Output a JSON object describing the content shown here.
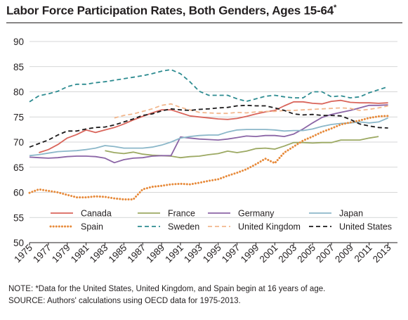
{
  "title": "Labor Force Participation Rates, Both Genders, Ages 15-64",
  "title_mark": "*",
  "notes": {
    "note": "NOTE: *Data for the United States, United Kingdom, and Spain begin at 16 years of age.",
    "source": "SOURCE: Authors' calculations using OECD data for 1975-2013."
  },
  "chart_data": {
    "type": "line",
    "title": "Labor Force Participation Rates, Both Genders, Ages 15-64*",
    "xlabel": "",
    "ylabel": "",
    "xlim": [
      1975,
      2014
    ],
    "ylim": [
      50,
      90
    ],
    "x_ticks": [
      1975,
      1977,
      1979,
      1981,
      1983,
      1985,
      1987,
      1989,
      1991,
      1993,
      1995,
      1997,
      1999,
      2001,
      2003,
      2005,
      2007,
      2009,
      2011,
      2013
    ],
    "y_ticks": [
      50,
      55,
      60,
      65,
      70,
      75,
      80,
      85,
      90
    ],
    "grid": "horizontal",
    "legend_position": "bottom-inside",
    "series": [
      {
        "name": "Canada",
        "color": "#d9655b",
        "dash": "solid",
        "x_start": 1976,
        "values": [
          67.9,
          68.5,
          69.5,
          70.8,
          71.5,
          72.4,
          71.9,
          72.4,
          72.9,
          73.6,
          74.4,
          75.1,
          75.8,
          76.4,
          76.4,
          75.8,
          75.2,
          75.0,
          74.8,
          74.6,
          74.5,
          74.7,
          75.1,
          75.6,
          76.0,
          76.3,
          77.2,
          78.0,
          78.0,
          77.7,
          77.6,
          78.1,
          78.3,
          77.9,
          77.8,
          77.8,
          77.7,
          77.8
        ]
      },
      {
        "name": "France",
        "color": "#9ca963",
        "dash": "solid",
        "x_start": 1983,
        "values": [
          68.3,
          67.9,
          67.7,
          68.0,
          67.6,
          67.4,
          67.3,
          67.2,
          66.9,
          67.1,
          67.2,
          67.5,
          67.7,
          68.2,
          67.9,
          68.2,
          68.7,
          68.8,
          68.6,
          69.2,
          69.9,
          69.9,
          69.8,
          69.9,
          69.9,
          70.4,
          70.4,
          70.4,
          70.8,
          71.1
        ]
      },
      {
        "name": "Germany",
        "color": "#8b65a6",
        "dash": "solid",
        "x_start": 1975,
        "values": [
          67.0,
          66.9,
          66.8,
          66.9,
          67.1,
          67.2,
          67.2,
          67.1,
          66.8,
          65.9,
          66.5,
          66.8,
          66.9,
          67.2,
          67.3,
          67.3,
          71.0,
          70.8,
          70.6,
          70.5,
          70.4,
          70.6,
          70.9,
          71.2,
          71.1,
          71.3,
          71.3,
          71.1,
          71.6,
          72.6,
          73.8,
          74.9,
          75.5,
          75.9,
          76.3,
          76.8,
          77.3,
          77.3,
          77.4
        ]
      },
      {
        "name": "Japan",
        "color": "#8bb7c9",
        "dash": "solid",
        "x_start": 1975,
        "values": [
          67.3,
          67.5,
          67.8,
          68.1,
          68.2,
          68.3,
          68.5,
          68.8,
          69.3,
          69.1,
          68.8,
          68.8,
          68.8,
          69.0,
          69.4,
          70.0,
          70.8,
          71.1,
          71.3,
          71.4,
          71.4,
          72.0,
          72.4,
          72.5,
          72.5,
          72.5,
          72.4,
          72.2,
          72.3,
          72.3,
          72.6,
          73.1,
          73.5,
          73.7,
          73.8,
          74.0,
          73.8,
          74.0,
          74.8
        ]
      },
      {
        "name": "Spain",
        "color": "#e78b3c",
        "dash": "dotted",
        "x_start": 1975,
        "values": [
          59.9,
          60.6,
          60.3,
          60.0,
          59.5,
          59.0,
          59.0,
          59.2,
          59.1,
          58.8,
          58.6,
          58.6,
          60.6,
          61.1,
          61.3,
          61.6,
          61.7,
          61.6,
          61.9,
          62.3,
          62.6,
          63.3,
          63.9,
          64.6,
          65.6,
          66.7,
          65.8,
          67.9,
          69.1,
          70.3,
          71.1,
          72.0,
          72.7,
          73.5,
          73.9,
          74.3,
          74.8,
          75.1,
          75.2
        ]
      },
      {
        "name": "Sweden",
        "color": "#2e8c91",
        "dash": "dashed",
        "x_start": 1975,
        "values": [
          78.0,
          79.2,
          79.6,
          80.1,
          81.0,
          81.5,
          81.5,
          81.8,
          82.0,
          82.3,
          82.6,
          82.9,
          83.2,
          83.6,
          84.1,
          84.4,
          83.6,
          82.0,
          80.1,
          79.3,
          79.3,
          79.3,
          78.6,
          78.1,
          78.6,
          79.1,
          79.3,
          79.0,
          78.8,
          78.8,
          80.0,
          80.0,
          79.0,
          79.2,
          78.8,
          79.0,
          79.8,
          80.4,
          81.0
        ]
      },
      {
        "name": "United Kingdom",
        "color": "#f2b78d",
        "dash": "dashed",
        "x_start": 1984,
        "values": [
          74.8,
          75.3,
          75.6,
          76.1,
          76.6,
          77.3,
          77.6,
          76.9,
          76.4,
          75.9,
          75.8,
          75.7,
          75.7,
          75.9,
          75.8,
          76.0,
          76.1,
          76.1,
          76.3,
          76.3,
          76.4,
          76.5,
          76.6,
          76.7,
          76.8,
          76.7,
          76.3,
          76.5,
          76.8,
          77.2
        ]
      },
      {
        "name": "United States",
        "color": "#1c1a1b",
        "dash": "dashed",
        "x_start": 1975,
        "values": [
          69.0,
          69.7,
          70.4,
          71.4,
          72.2,
          72.2,
          72.6,
          72.9,
          73.0,
          73.4,
          74.0,
          74.6,
          75.3,
          75.6,
          76.2,
          76.6,
          76.4,
          76.3,
          76.5,
          76.6,
          76.8,
          76.9,
          77.2,
          77.3,
          77.2,
          77.2,
          76.8,
          76.3,
          75.6,
          75.4,
          75.5,
          75.3,
          75.3,
          75.2,
          74.5,
          73.6,
          73.2,
          72.9,
          72.8
        ]
      }
    ]
  }
}
